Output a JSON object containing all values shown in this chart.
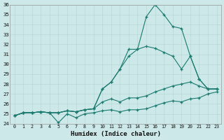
{
  "bg_color": "#cce8e8",
  "grid_color": "#b8d8d8",
  "line_color": "#1a7a6e",
  "xlabel": "Humidex (Indice chaleur)",
  "xlim_min": -0.5,
  "xlim_max": 23.5,
  "ylim_min": 24,
  "ylim_max": 36,
  "xticks": [
    0,
    1,
    2,
    3,
    4,
    5,
    6,
    7,
    8,
    9,
    10,
    11,
    12,
    13,
    14,
    15,
    16,
    17,
    18,
    19,
    20,
    21,
    22,
    23
  ],
  "yticks": [
    24,
    25,
    26,
    27,
    28,
    29,
    30,
    31,
    32,
    33,
    34,
    35,
    36
  ],
  "lines": [
    {
      "x": [
        0,
        1,
        2,
        3,
        4,
        5,
        6,
        7,
        8,
        9,
        10,
        11,
        12,
        13,
        14,
        15,
        16,
        17,
        18,
        19,
        20,
        21,
        22,
        23
      ],
      "y": [
        24.8,
        25.1,
        25.1,
        25.2,
        25.1,
        24.1,
        25.0,
        24.6,
        25.0,
        25.1,
        25.3,
        25.4,
        25.2,
        25.4,
        25.4,
        25.5,
        25.8,
        26.1,
        26.3,
        26.2,
        26.5,
        26.6,
        27.0,
        27.2
      ]
    },
    {
      "x": [
        0,
        1,
        2,
        3,
        4,
        5,
        6,
        7,
        8,
        9,
        10,
        11,
        12,
        13,
        14,
        15,
        16,
        17,
        18,
        19,
        20,
        21,
        22,
        23
      ],
      "y": [
        24.8,
        25.1,
        25.1,
        25.2,
        25.1,
        25.1,
        25.3,
        25.2,
        25.4,
        25.5,
        26.2,
        26.5,
        26.2,
        26.6,
        26.6,
        26.8,
        27.2,
        27.5,
        27.8,
        28.0,
        28.2,
        27.8,
        27.5,
        27.5
      ]
    },
    {
      "x": [
        0,
        1,
        2,
        3,
        4,
        5,
        6,
        7,
        8,
        9,
        10,
        11,
        12,
        13,
        14,
        15,
        16,
        17,
        18,
        19,
        20,
        21,
        22,
        23
      ],
      "y": [
        24.8,
        25.1,
        25.1,
        25.2,
        25.1,
        25.1,
        25.3,
        25.2,
        25.4,
        25.5,
        27.5,
        28.2,
        29.5,
        30.8,
        31.5,
        31.8,
        31.6,
        31.2,
        30.8,
        29.5,
        30.8,
        28.5,
        27.5,
        27.5
      ]
    },
    {
      "x": [
        0,
        1,
        2,
        3,
        4,
        5,
        6,
        7,
        8,
        9,
        10,
        11,
        12,
        13,
        14,
        15,
        16,
        17,
        18,
        19,
        20,
        21,
        22,
        23
      ],
      "y": [
        24.8,
        25.1,
        25.1,
        25.2,
        25.1,
        25.1,
        25.3,
        25.2,
        25.4,
        25.5,
        27.5,
        28.2,
        29.5,
        31.5,
        31.5,
        34.8,
        36.0,
        35.0,
        33.8,
        33.6,
        30.8,
        28.5,
        27.5,
        27.5
      ]
    }
  ]
}
